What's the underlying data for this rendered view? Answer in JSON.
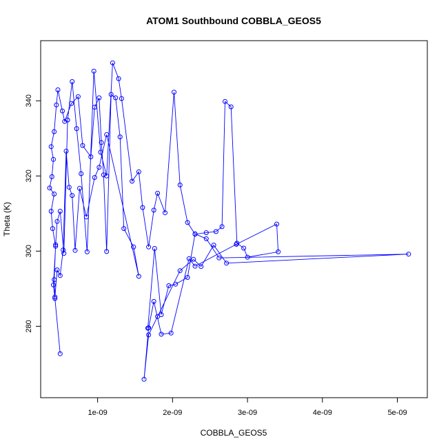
{
  "chart_data": {
    "type": "line",
    "title": "ATOM1 Southbound COBBLA_GEOS5",
    "xlabel": "COBBLA_GEOS5",
    "ylabel": "Theta (K)",
    "xlim": [
      2.4e-10,
      5.4e-09
    ],
    "ylim": [
      261,
      356
    ],
    "x_ticks": [
      {
        "value": 1e-09,
        "label": "1e-09"
      },
      {
        "value": 2e-09,
        "label": "2e-09"
      },
      {
        "value": 3e-09,
        "label": "3e-09"
      },
      {
        "value": 4e-09,
        "label": "4e-09"
      },
      {
        "value": 5e-09,
        "label": "5e-09"
      }
    ],
    "y_ticks": [
      {
        "value": 280,
        "label": "280"
      },
      {
        "value": 300,
        "label": "300"
      },
      {
        "value": 320,
        "label": "320"
      },
      {
        "value": 340,
        "label": "340"
      }
    ],
    "grid": false,
    "legend": "none",
    "color": "#0000ff",
    "marker": "open-circle",
    "series": [
      {
        "x": [
          5e-10,
          4.3e-10,
          4.1e-10,
          4.4e-10,
          4e-10,
          3.8e-10,
          4.2e-10,
          3.6e-10,
          3.9e-10,
          4.1e-10,
          3.8e-10,
          4.2e-10,
          4.5e-10,
          4.7e-10,
          5.3e-10,
          5.6e-10,
          6.5e-10,
          7.4e-10,
          8e-10,
          9.1e-10,
          9.6e-10,
          1.02e-09,
          1.05e-09,
          1.08e-09,
          1.12e-09,
          1.18e-09,
          1.24e-09,
          1.3e-09,
          1.35e-09,
          1.48e-09,
          1.55e-09,
          1.12e-09,
          1.02e-09,
          9.6e-10,
          8.5e-10,
          7.6e-10,
          7e-10,
          6.6e-10,
          6.2e-10,
          5.8e-10,
          5.4e-10,
          5e-10,
          4.6e-10,
          4.3e-10,
          4.2e-10,
          4.4e-10,
          4.6e-10,
          5e-10,
          5.5e-10,
          6e-10,
          6.6e-10,
          7.2e-10,
          7.8e-10,
          8.6e-10,
          9.5e-10,
          1.04e-09,
          1.12e-09,
          1.2e-09,
          1.28e-09,
          1.32e-09,
          1.46e-09,
          1.55e-09,
          1.6e-09,
          1.68e-09,
          1.75e-09,
          1.8e-09,
          1.9e-09,
          2.02e-09,
          2.1e-09,
          2.2e-09,
          2.3e-09,
          2.45e-09,
          2.58e-09,
          2.66e-09,
          2.7e-09,
          2.78e-09,
          2.86e-09,
          2.95e-09,
          3e-09,
          3.41e-09,
          3.39e-09,
          2.85e-09,
          2.3e-09,
          2.22e-09,
          1.98e-09,
          1.85e-09,
          1.75e-09,
          1.68e-09,
          1.62e-09,
          1.68e-09,
          1.8e-09,
          2.1e-09,
          2.28e-09,
          2.38e-09,
          2.55e-09,
          2.72e-09,
          5.15e-09,
          2.62e-09,
          2.45e-09,
          2.3e-09,
          2.2e-09,
          2.04e-09,
          1.95e-09,
          1.85e-09,
          1.76e-09,
          1.67e-09
        ],
        "y": [
          272.7,
          287.4,
          291.0,
          301.3,
          306.0,
          310.6,
          315.2,
          316.8,
          319.8,
          324.4,
          327.8,
          331.8,
          338.9,
          342.9,
          337.3,
          334.5,
          339.3,
          341.1,
          328.1,
          325.1,
          338.3,
          340.8,
          328.9,
          320.3,
          299.9,
          341.7,
          340.8,
          330.4,
          306.0,
          301.1,
          293.3,
          331.0,
          322.3,
          319.6,
          309.1,
          316.7,
          300.2,
          314.8,
          317.0,
          326.6,
          300.3,
          293.5,
          295.0,
          287.8,
          292.4,
          301.7,
          307.9,
          310.6,
          299.4,
          334.9,
          345.1,
          332.6,
          320.6,
          299.8,
          347.9,
          326.3,
          320.0,
          350.1,
          345.9,
          340.6,
          318.6,
          321.1,
          311.6,
          301.1,
          310.9,
          315.4,
          310.2,
          342.3,
          317.6,
          307.6,
          304.5,
          304.9,
          305.2,
          306.5,
          339.8,
          338.4,
          302.1,
          300.8,
          298.4,
          299.8,
          307.2,
          301.8,
          296.0,
          298.0,
          278.2,
          277.9,
          286.6,
          279.6,
          265.9,
          277.7,
          282.6,
          294.8,
          297.8,
          295.9,
          301.6,
          296.8,
          299.2,
          298.2,
          303.3,
          304.6,
          293.0,
          291.2,
          290.8,
          283.1,
          300.7,
          279.5
        ]
      }
    ]
  }
}
